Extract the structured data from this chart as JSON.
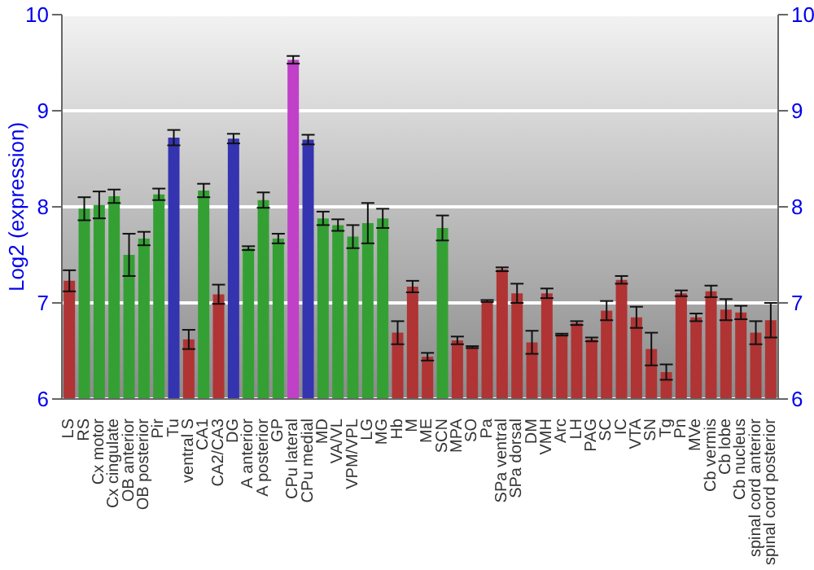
{
  "chart_data": {
    "type": "bar",
    "ylabel": "Log2 (expression)",
    "categories": [
      "LS",
      "RS",
      "Cx motor",
      "Cx cingulate",
      "OB anterior",
      "OB posterior",
      "Pir",
      "Tu",
      "ventral S",
      "CA1",
      "CA2/CA3",
      "DG",
      "A anterior",
      "A posterior",
      "GP",
      "CPu lateral",
      "CPu medial",
      "MD",
      "VA/VL",
      "VPM/VPL",
      "LG",
      "MG",
      "Hb",
      "M",
      "ME",
      "SCN",
      "MPA",
      "SO",
      "Pa",
      "SPa ventral",
      "SPa dorsal",
      "DM",
      "VMH",
      "Arc",
      "LH",
      "PAG",
      "SC",
      "IC",
      "VTA",
      "SN",
      "Tg",
      "Pn",
      "MVe",
      "Cb vermis",
      "Cb lobe",
      "Cb nucleus",
      "spinal cord anterior",
      "spinal cord posterior"
    ],
    "values": [
      7.23,
      7.98,
      8.02,
      8.11,
      7.5,
      7.67,
      8.13,
      8.72,
      6.62,
      8.17,
      7.09,
      8.71,
      7.57,
      8.07,
      7.67,
      9.53,
      8.7,
      7.88,
      7.81,
      7.69,
      7.83,
      7.88,
      6.69,
      7.17,
      6.44,
      7.78,
      6.61,
      6.54,
      7.02,
      7.35,
      7.1,
      6.59,
      7.1,
      6.67,
      6.79,
      6.62,
      6.92,
      7.24,
      6.85,
      6.52,
      6.28,
      7.1,
      6.85,
      7.12,
      6.93,
      6.9,
      6.69,
      6.82
    ],
    "errors": [
      0.11,
      0.12,
      0.14,
      0.07,
      0.22,
      0.07,
      0.06,
      0.08,
      0.1,
      0.07,
      0.1,
      0.05,
      0.02,
      0.08,
      0.05,
      0.04,
      0.05,
      0.07,
      0.06,
      0.12,
      0.21,
      0.1,
      0.12,
      0.06,
      0.04,
      0.13,
      0.04,
      0.01,
      0.01,
      0.02,
      0.1,
      0.12,
      0.05,
      0.01,
      0.02,
      0.02,
      0.1,
      0.04,
      0.11,
      0.17,
      0.08,
      0.03,
      0.04,
      0.06,
      0.11,
      0.07,
      0.12,
      0.18
    ],
    "colors": [
      "#b03434",
      "#34a034",
      "#34a034",
      "#34a034",
      "#34a034",
      "#34a034",
      "#34a034",
      "#3434b0",
      "#b03434",
      "#34a034",
      "#b03434",
      "#3434b0",
      "#34a034",
      "#34a034",
      "#34a034",
      "#c040c8",
      "#3434b0",
      "#34a034",
      "#34a034",
      "#34a034",
      "#34a034",
      "#34a034",
      "#b03434",
      "#b03434",
      "#b03434",
      "#34a034",
      "#b03434",
      "#b03434",
      "#b03434",
      "#b03434",
      "#b03434",
      "#b03434",
      "#b03434",
      "#b03434",
      "#b03434",
      "#b03434",
      "#b03434",
      "#b03434",
      "#b03434",
      "#b03434",
      "#b03434",
      "#b03434",
      "#b03434",
      "#b03434",
      "#b03434",
      "#b03434",
      "#b03434",
      "#b03434"
    ],
    "ylim": [
      6,
      10
    ],
    "yticks": [
      6,
      7,
      8,
      9,
      10
    ],
    "y2lim": [
      6,
      10
    ],
    "y2ticks": [
      6,
      7,
      8,
      9,
      10
    ],
    "grid": "y"
  }
}
